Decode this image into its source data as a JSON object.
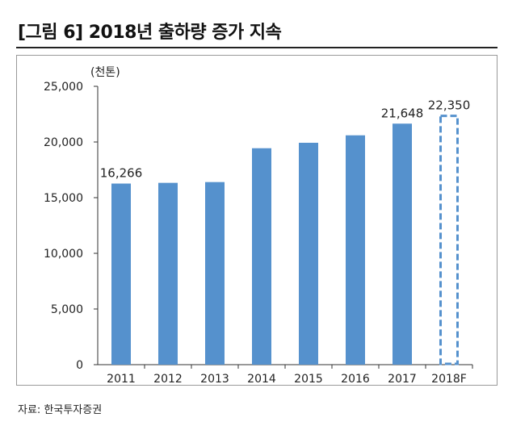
{
  "title": "[그림 6] 2018년 출하량 증가 지속",
  "source": "자료: 한국투자증권",
  "chart_data": {
    "type": "bar",
    "title": "[그림 6] 2018년 출하량 증가 지속",
    "ylabel": "(천톤)",
    "xlabel": "",
    "ylim": [
      0,
      25000
    ],
    "yticks": [
      0,
      5000,
      10000,
      15000,
      20000,
      25000
    ],
    "ytick_labels": [
      "0",
      "5,000",
      "10,000",
      "15,000",
      "20,000",
      "25,000"
    ],
    "categories": [
      "2011",
      "2012",
      "2013",
      "2014",
      "2015",
      "2016",
      "2017",
      "2018F"
    ],
    "values": [
      16266,
      16330,
      16400,
      19440,
      19930,
      20600,
      21648,
      22350
    ],
    "data_labels": {
      "2011": "16,266",
      "2017": "21,648",
      "2018F": "22,350"
    },
    "forecast_categories": [
      "2018F"
    ],
    "bar_color": "#5591CD",
    "grid": false,
    "legend": "none"
  }
}
